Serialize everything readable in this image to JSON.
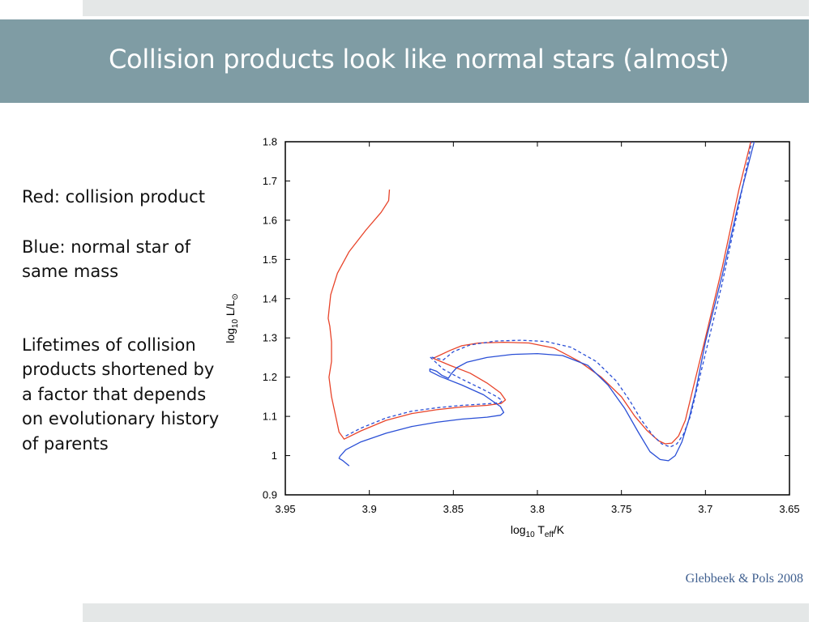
{
  "slide": {
    "title": "Collision products look like normal stars (almost)",
    "notes": {
      "red_label": "Red: collision product",
      "blue_label": "Blue: normal star of same mass",
      "lifetimes": "Lifetimes of collision products shortened by a factor that depends on evolutionary history of parents"
    },
    "credit": "Glebbeek & Pols 2008",
    "colors": {
      "title_bar": "#7f9ca4",
      "strip": "#e4e7e7",
      "credit": "#3f5f8f"
    }
  },
  "chart_data": {
    "type": "line",
    "title": "",
    "xlabel": {
      "pre": "log",
      "sub": "10",
      "mid": " T",
      "sub2": "eff",
      "post": "/K"
    },
    "ylabel": {
      "pre": "log",
      "sub": "10",
      "mid": " L/L",
      "sym": "⊙"
    },
    "xlim": [
      3.95,
      3.65
    ],
    "ylim": [
      0.9,
      1.8
    ],
    "x_reversed": true,
    "xticks": [
      "3.95",
      "3.9",
      "3.85",
      "3.8",
      "3.75",
      "3.7",
      "3.65"
    ],
    "yticks": [
      "0.9",
      "1",
      "1.1",
      "1.2",
      "1.3",
      "1.4",
      "1.5",
      "1.6",
      "1.7",
      "1.8"
    ],
    "grid": false,
    "series": [
      {
        "color": "#e8442a",
        "dash": "solid",
        "x": [
          3.888,
          3.8885,
          3.893,
          3.902,
          3.912,
          3.919,
          3.923,
          3.924,
          3.9245,
          3.9235,
          3.9225,
          3.9225,
          3.924,
          3.9225,
          3.92,
          3.918,
          3.915,
          3.905,
          3.89,
          3.875,
          3.86,
          3.845,
          3.83,
          3.8215,
          3.819,
          3.822,
          3.83,
          3.84,
          3.852,
          3.862,
          3.852,
          3.845,
          3.835,
          3.82,
          3.805,
          3.79,
          3.775,
          3.762,
          3.75,
          3.742,
          3.735,
          3.728,
          3.724,
          3.72,
          3.716,
          3.712,
          3.708,
          3.7,
          3.69,
          3.68,
          3.673
        ],
        "y": [
          1.678,
          1.65,
          1.62,
          1.575,
          1.52,
          1.465,
          1.41,
          1.37,
          1.35,
          1.33,
          1.29,
          1.24,
          1.2,
          1.15,
          1.1,
          1.06,
          1.042,
          1.063,
          1.09,
          1.107,
          1.117,
          1.124,
          1.128,
          1.133,
          1.142,
          1.16,
          1.185,
          1.21,
          1.23,
          1.248,
          1.268,
          1.28,
          1.287,
          1.289,
          1.287,
          1.274,
          1.24,
          1.2,
          1.15,
          1.1,
          1.065,
          1.038,
          1.03,
          1.032,
          1.05,
          1.09,
          1.16,
          1.3,
          1.48,
          1.68,
          1.8
        ]
      },
      {
        "color": "#2a4fd6",
        "dash": "solid",
        "x": [
          3.912,
          3.916,
          3.918,
          3.9175,
          3.914,
          3.905,
          3.89,
          3.875,
          3.86,
          3.845,
          3.83,
          3.822,
          3.82,
          3.822,
          3.832,
          3.845,
          3.858,
          3.864,
          3.864,
          3.86,
          3.857,
          3.853,
          3.851,
          3.848,
          3.842,
          3.83,
          3.815,
          3.8,
          3.785,
          3.77,
          3.758,
          3.748,
          3.74,
          3.733,
          3.727,
          3.722,
          3.718,
          3.714,
          3.71,
          3.706,
          3.7,
          3.69,
          3.68,
          3.671
        ],
        "y": [
          0.974,
          0.988,
          0.993,
          0.998,
          1.015,
          1.035,
          1.057,
          1.074,
          1.085,
          1.093,
          1.098,
          1.103,
          1.11,
          1.125,
          1.155,
          1.18,
          1.202,
          1.215,
          1.221,
          1.215,
          1.205,
          1.197,
          1.21,
          1.224,
          1.238,
          1.25,
          1.258,
          1.26,
          1.255,
          1.23,
          1.18,
          1.12,
          1.06,
          1.01,
          0.99,
          0.987,
          1.0,
          1.035,
          1.09,
          1.16,
          1.29,
          1.46,
          1.65,
          1.8
        ]
      },
      {
        "color": "#2a4fd6",
        "dash": "dashed",
        "x": [
          3.914,
          3.905,
          3.89,
          3.875,
          3.86,
          3.845,
          3.83,
          3.822,
          3.821,
          3.824,
          3.833,
          3.845,
          3.856,
          3.864,
          3.856,
          3.85,
          3.84,
          3.825,
          3.81,
          3.795,
          3.78,
          3.765,
          3.753,
          3.745,
          3.738,
          3.731,
          3.726,
          3.721,
          3.717,
          3.713,
          3.709,
          3.7,
          3.69,
          3.68,
          3.6725
        ],
        "y": [
          1.05,
          1.07,
          1.096,
          1.113,
          1.122,
          1.128,
          1.132,
          1.135,
          1.14,
          1.15,
          1.17,
          1.195,
          1.22,
          1.252,
          1.244,
          1.265,
          1.282,
          1.292,
          1.294,
          1.291,
          1.276,
          1.24,
          1.19,
          1.14,
          1.09,
          1.05,
          1.03,
          1.022,
          1.03,
          1.055,
          1.1,
          1.26,
          1.44,
          1.64,
          1.8
        ]
      }
    ]
  }
}
